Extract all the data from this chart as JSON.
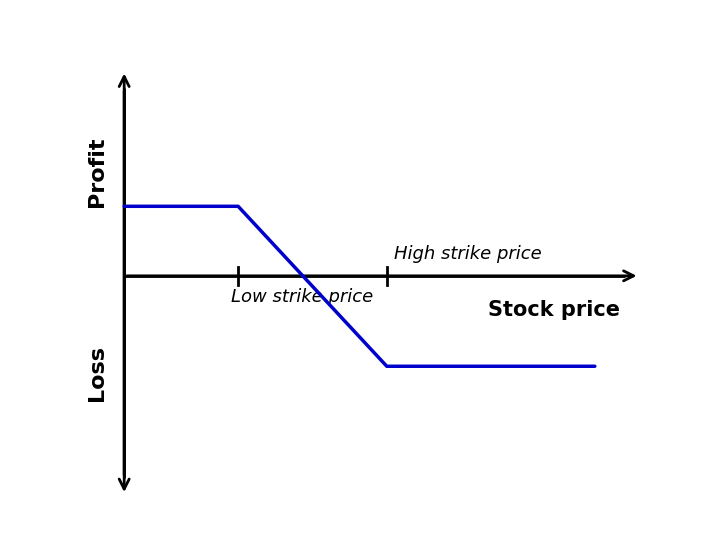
{
  "background_color": "#ffffff",
  "line_color": "#0000cc",
  "line_width": 2.5,
  "axis_color": "#000000",
  "axis_lw": 2.0,
  "x_low_strike": 2.8,
  "x_high_strike": 5.8,
  "y_profit": 1.0,
  "y_loss": -1.3,
  "x_start": 0.5,
  "x_end": 10.0,
  "y_zero": 0.0,
  "ylim": [
    -3.2,
    3.0
  ],
  "xlim": [
    -0.2,
    11.0
  ],
  "ylabel_profit": "Profit",
  "ylabel_loss": "Loss",
  "xlabel": "Stock price",
  "label_low": "Low strike price",
  "label_high": "High strike price",
  "axis_label_fontsize": 16,
  "xlabel_fontsize": 15,
  "strike_label_fontsize": 13
}
